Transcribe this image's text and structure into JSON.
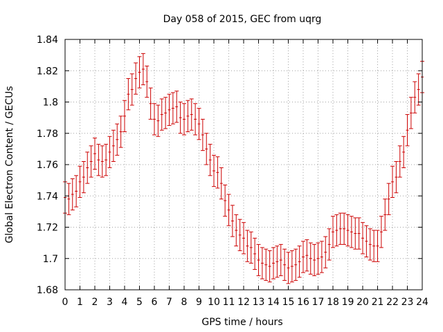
{
  "chart_data": {
    "type": "scatter",
    "title": "Day 058 of 2015, GEC from uqrg",
    "xlabel": "GPS time / hours",
    "ylabel": "Global Electron Content / GECUs",
    "xlim": [
      0,
      24
    ],
    "ylim": [
      1.68,
      1.84
    ],
    "x_ticks": [
      0,
      1,
      2,
      3,
      4,
      5,
      6,
      7,
      8,
      9,
      10,
      11,
      12,
      13,
      14,
      15,
      16,
      17,
      18,
      19,
      20,
      21,
      22,
      23,
      24
    ],
    "y_ticks": [
      1.68,
      1.7,
      1.72,
      1.74,
      1.76,
      1.78,
      1.8,
      1.82,
      1.84
    ],
    "grid": true,
    "error_bars": true,
    "marker": "point-with-y-error",
    "colors": {
      "series": "#cc0000",
      "grid": "#a0a0a0",
      "axis": "#000000"
    },
    "series": [
      {
        "x": [
          0.0,
          0.25,
          0.5,
          0.75,
          1.0,
          1.25,
          1.5,
          1.75,
          2.0,
          2.25,
          2.5,
          2.75,
          3.0,
          3.25,
          3.5,
          3.75,
          4.0,
          4.25,
          4.5,
          4.75,
          5.0,
          5.25,
          5.5,
          5.75,
          6.0,
          6.25,
          6.5,
          6.75,
          7.0,
          7.25,
          7.5,
          7.75,
          8.0,
          8.25,
          8.5,
          8.75,
          9.0,
          9.25,
          9.5,
          9.75,
          10.0,
          10.25,
          10.5,
          10.75,
          11.0,
          11.25,
          11.5,
          11.75,
          12.0,
          12.25,
          12.5,
          12.75,
          13.0,
          13.25,
          13.5,
          13.75,
          14.0,
          14.25,
          14.5,
          14.75,
          15.0,
          15.25,
          15.5,
          15.75,
          16.0,
          16.25,
          16.5,
          16.75,
          17.0,
          17.25,
          17.5,
          17.75,
          18.0,
          18.25,
          18.5,
          18.75,
          19.0,
          19.25,
          19.5,
          19.75,
          20.0,
          20.25,
          20.5,
          20.75,
          21.0,
          21.25,
          21.5,
          21.75,
          22.0,
          22.25,
          22.5,
          22.75,
          23.0,
          23.25,
          23.5,
          23.75,
          24.0
        ],
        "y": [
          1.739,
          1.738,
          1.741,
          1.743,
          1.749,
          1.752,
          1.758,
          1.762,
          1.767,
          1.763,
          1.762,
          1.763,
          1.768,
          1.772,
          1.776,
          1.781,
          1.791,
          1.805,
          1.808,
          1.815,
          1.819,
          1.821,
          1.813,
          1.799,
          1.789,
          1.788,
          1.792,
          1.793,
          1.795,
          1.796,
          1.797,
          1.79,
          1.789,
          1.791,
          1.792,
          1.789,
          1.786,
          1.779,
          1.77,
          1.763,
          1.756,
          1.755,
          1.748,
          1.737,
          1.731,
          1.724,
          1.718,
          1.715,
          1.713,
          1.708,
          1.707,
          1.703,
          1.699,
          1.697,
          1.696,
          1.695,
          1.697,
          1.698,
          1.699,
          1.696,
          1.694,
          1.695,
          1.696,
          1.698,
          1.701,
          1.702,
          1.7,
          1.699,
          1.7,
          1.701,
          1.704,
          1.709,
          1.717,
          1.718,
          1.719,
          1.719,
          1.718,
          1.717,
          1.716,
          1.716,
          1.713,
          1.711,
          1.709,
          1.708,
          1.708,
          1.717,
          1.728,
          1.738,
          1.749,
          1.752,
          1.762,
          1.768,
          1.782,
          1.793,
          1.803,
          1.808,
          1.816
        ],
        "err": [
          0.01,
          0.01,
          0.01,
          0.01,
          0.01,
          0.01,
          0.01,
          0.01,
          0.01,
          0.01,
          0.01,
          0.01,
          0.01,
          0.01,
          0.01,
          0.01,
          0.01,
          0.01,
          0.01,
          0.01,
          0.01,
          0.01,
          0.01,
          0.01,
          0.01,
          0.01,
          0.01,
          0.01,
          0.01,
          0.01,
          0.01,
          0.01,
          0.01,
          0.01,
          0.01,
          0.01,
          0.01,
          0.01,
          0.01,
          0.01,
          0.01,
          0.01,
          0.01,
          0.01,
          0.01,
          0.01,
          0.01,
          0.01,
          0.01,
          0.01,
          0.01,
          0.01,
          0.01,
          0.01,
          0.01,
          0.01,
          0.01,
          0.01,
          0.01,
          0.01,
          0.01,
          0.01,
          0.01,
          0.01,
          0.01,
          0.01,
          0.01,
          0.01,
          0.01,
          0.01,
          0.01,
          0.01,
          0.01,
          0.01,
          0.01,
          0.01,
          0.01,
          0.01,
          0.01,
          0.01,
          0.01,
          0.01,
          0.01,
          0.01,
          0.01,
          0.01,
          0.01,
          0.01,
          0.01,
          0.01,
          0.01,
          0.01,
          0.01,
          0.01,
          0.01,
          0.01,
          0.01
        ]
      }
    ]
  }
}
